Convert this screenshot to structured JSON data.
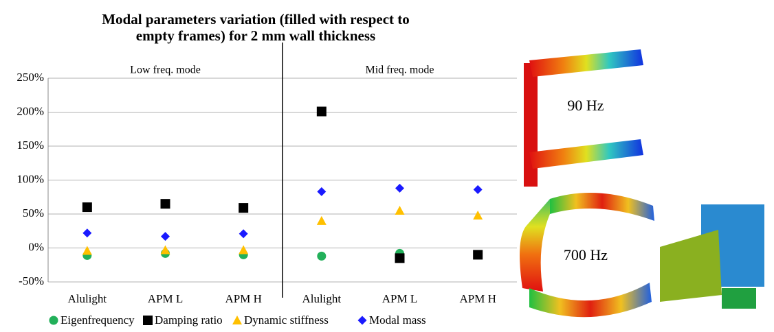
{
  "chart_data": {
    "type": "scatter",
    "title": "Modal parameters variation (filled with respect to empty frames) for 2 mm wall thickness",
    "annotations": [
      "Low freq. mode",
      "Mid freq. mode",
      "90 Hz",
      "700 Hz"
    ],
    "categories": [
      "Alulight",
      "APM L",
      "APM H",
      "Alulight",
      "APM L",
      "APM H"
    ],
    "ylim": [
      -50,
      250
    ],
    "yticks": [
      {
        "value": -50,
        "label": "-50%"
      },
      {
        "value": 0,
        "label": "0%"
      },
      {
        "value": 50,
        "label": "50%"
      },
      {
        "value": 100,
        "label": "100%"
      },
      {
        "value": 150,
        "label": "150%"
      },
      {
        "value": 200,
        "label": "200%"
      },
      {
        "value": 250,
        "label": "250%"
      }
    ],
    "grid": true,
    "series": [
      {
        "name": "Eigenfrequency",
        "color": "#22b05a",
        "marker": "circle",
        "values": [
          -11,
          -8,
          -10,
          -12,
          -8,
          null
        ]
      },
      {
        "name": "Damping ratio",
        "color": "#000000",
        "marker": "square",
        "values": [
          60,
          65,
          59,
          201,
          -15,
          -10
        ]
      },
      {
        "name": "Dynamic stiffness",
        "color": "#ffc000",
        "marker": "triangle",
        "values": [
          -4,
          -3,
          -3,
          40,
          55,
          48
        ]
      },
      {
        "name": "Modal mass",
        "color": "#1a1aff",
        "marker": "diamond",
        "values": [
          22,
          17,
          21,
          83,
          88,
          86
        ]
      }
    ]
  }
}
